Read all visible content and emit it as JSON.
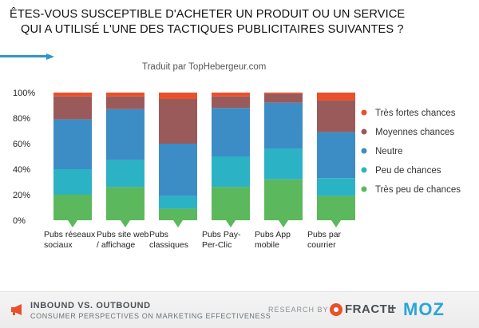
{
  "header": {
    "title_line1": "ÊTES-VOUS SUSCEPTIBLE D'ACHETER UN PRODUIT OU UN SERVICE",
    "title_line2": "QUI A UTILISÉ L'UNE DES TACTIQUES PUBLICITAIRES SUIVANTES ?",
    "subtitle": "Traduit par TopHebergeur.com"
  },
  "chart_data": {
    "type": "bar",
    "stacked": true,
    "categories": [
      [
        "Pubs réseaux",
        "sociaux"
      ],
      [
        "Pubs site web",
        "/ affichage"
      ],
      [
        "Pubs",
        "classiques"
      ],
      [
        "Pubs Pay-",
        "Per-Clic"
      ],
      [
        "Pubs App",
        "mobile"
      ],
      [
        "Pubs par",
        "courrier"
      ]
    ],
    "series": [
      {
        "name": "Très peu de chances",
        "color": "#5cb85c",
        "values": [
          20,
          26,
          9,
          26,
          32,
          19
        ]
      },
      {
        "name": "Peu de chances",
        "color": "#2bb3c5",
        "values": [
          20,
          21,
          10,
          24,
          24,
          14
        ]
      },
      {
        "name": "Neutre",
        "color": "#3c8dc5",
        "values": [
          39,
          40,
          41,
          38,
          36,
          36
        ]
      },
      {
        "name": "Moyennes chances",
        "color": "#9b5a5a",
        "values": [
          18,
          10,
          35,
          9,
          7,
          25
        ]
      },
      {
        "name": "Très fortes chances",
        "color": "#e8512b",
        "values": [
          3,
          3,
          5,
          3,
          1,
          6
        ]
      }
    ],
    "yticks": [
      "0%",
      "20%",
      "40%",
      "60%",
      "80%",
      "100%"
    ],
    "ylim": [
      0,
      100
    ],
    "legend_position": "right"
  },
  "footer": {
    "line1": "INBOUND VS. OUTBOUND",
    "line2": "CONSUMER PERSPECTIVES ON MARKETING EFFECTIVENESS",
    "research": "RESEARCH BY >",
    "fractl": "FRACTL",
    "plus": "+",
    "moz": "MOZ"
  }
}
